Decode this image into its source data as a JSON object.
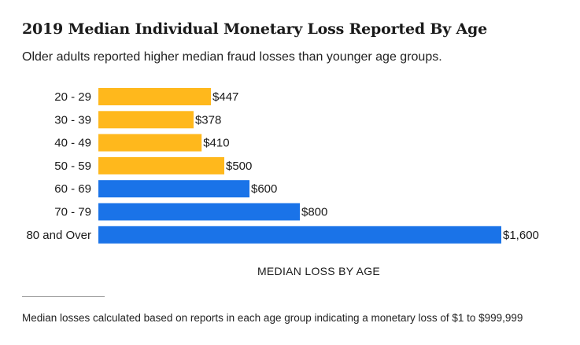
{
  "title": "2019 Median Individual Monetary Loss Reported By Age",
  "subtitle": "Older adults reported higher median fraud losses than younger age groups.",
  "footnote": "Median losses calculated based on reports in each age group indicating a monetary loss of $1 to $999,999",
  "colors": {
    "younger": "#FFB81C",
    "older": "#1A73E8",
    "text": "#1a1a1a"
  },
  "chart_data": {
    "type": "bar",
    "orientation": "horizontal",
    "categories": [
      "20 - 29",
      "30 - 39",
      "40 - 49",
      "50 - 59",
      "60 - 69",
      "70 - 79",
      "80 and Over"
    ],
    "values": [
      447,
      378,
      410,
      500,
      600,
      800,
      1600
    ],
    "data_labels": [
      "$447",
      "$378",
      "$410",
      "$500",
      "$600",
      "$800",
      "$1,600"
    ],
    "bar_colors": [
      "#FFB81C",
      "#FFB81C",
      "#FFB81C",
      "#FFB81C",
      "#1A73E8",
      "#1A73E8",
      "#1A73E8"
    ],
    "xlabel": "MEDIAN LOSS BY AGE",
    "ylabel": "",
    "xlim": [
      0,
      1600
    ],
    "grid": false,
    "legend": "none"
  }
}
